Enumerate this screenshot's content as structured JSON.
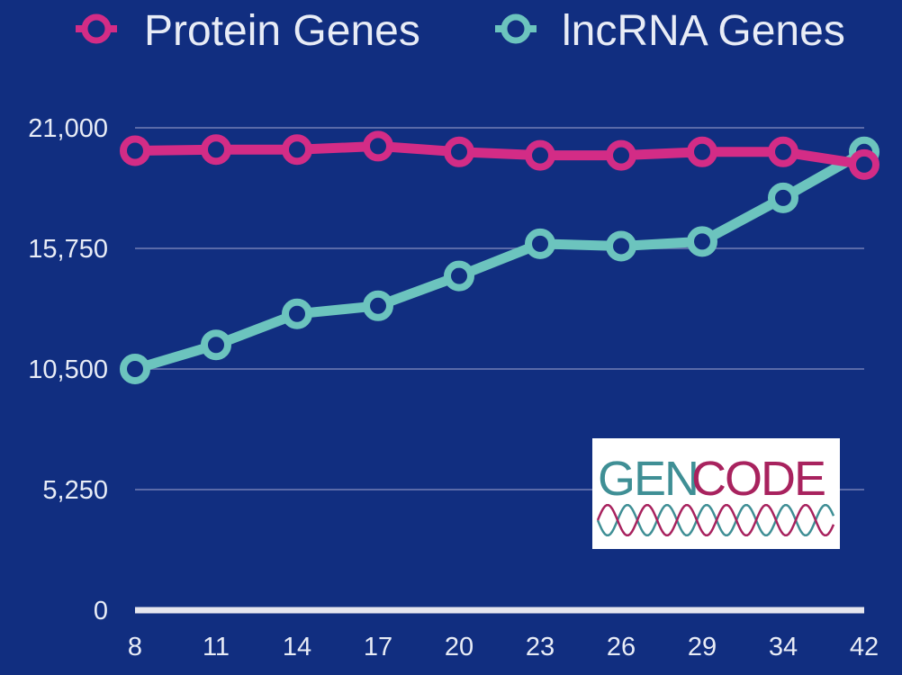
{
  "chart_data": {
    "type": "line",
    "title": "",
    "xlabel": "",
    "ylabel": "",
    "categories": [
      "8",
      "11",
      "14",
      "17",
      "20",
      "23",
      "26",
      "29",
      "34",
      "42"
    ],
    "ylim": [
      0,
      21000
    ],
    "yticks": [
      0,
      5250,
      10500,
      15750,
      21000
    ],
    "ytick_labels": [
      "0",
      "5,250",
      "10,500",
      "15,750",
      "21,000"
    ],
    "grid": true,
    "legend_position": "top",
    "series": [
      {
        "name": "Protein Genes",
        "color": "#d32c86",
        "values": [
          20000,
          20050,
          20050,
          20200,
          19950,
          19800,
          19800,
          19950,
          19950,
          19400
        ]
      },
      {
        "name": "lncRNA Genes",
        "color": "#6cc4be",
        "values": [
          10500,
          11550,
          12900,
          13250,
          14550,
          15950,
          15850,
          16050,
          17950,
          19950
        ]
      }
    ]
  },
  "logo": {
    "text_part1": "GEN",
    "text_part2": "CODE",
    "color_part1": "#3f8f95",
    "color_part2": "#a8225e"
  },
  "colors": {
    "background": "#112e80",
    "gridline": "#5a6aa8",
    "baseline": "#e6e6ee",
    "text": "#e8ecf6"
  }
}
